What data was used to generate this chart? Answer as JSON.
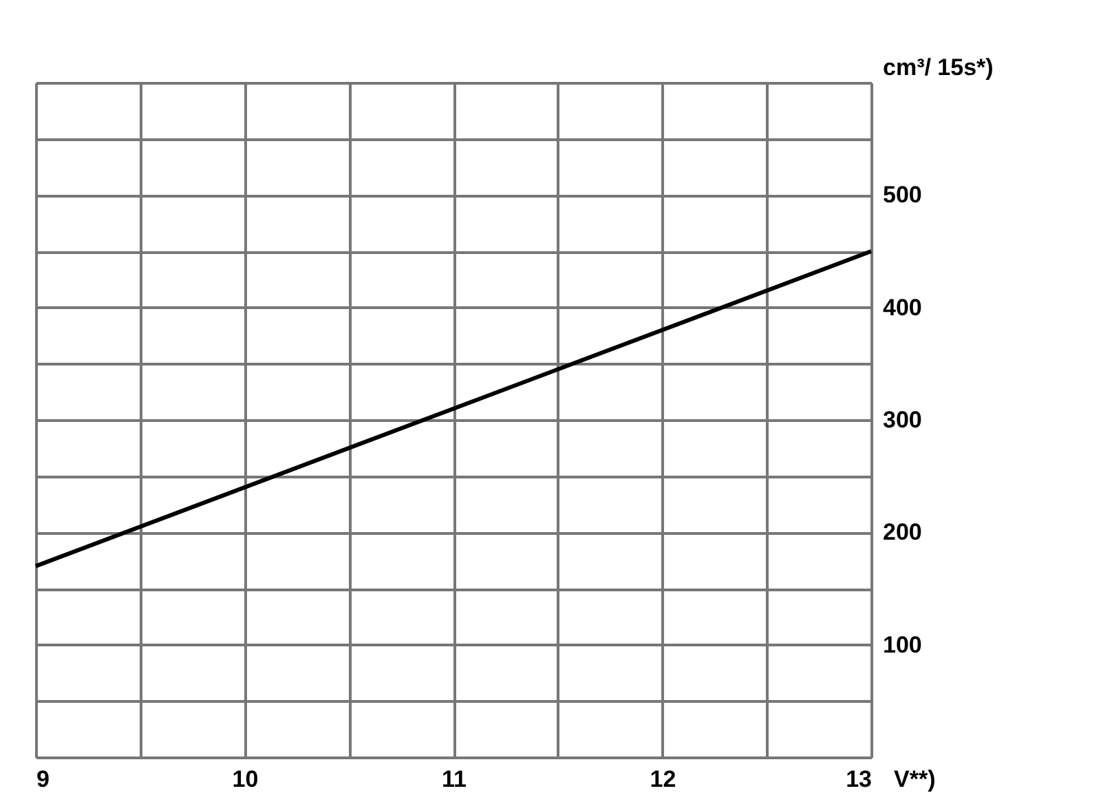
{
  "chart_data": {
    "type": "line",
    "xlabel": "V**)",
    "ylabel": "cm³/ 15s*)",
    "x": [
      9,
      13
    ],
    "series": [
      {
        "color": "#000000",
        "values": [
          170,
          450
        ]
      }
    ],
    "xlim": [
      9,
      13
    ],
    "ylim": [
      0,
      600
    ],
    "xticks": [
      9,
      {
        "value": 9.5,
        "label": null
      },
      10,
      {
        "value": 10.5,
        "label": null
      },
      11,
      {
        "value": 11.5,
        "label": null
      },
      12,
      {
        "value": 12.5,
        "label": null
      },
      13
    ],
    "yticks": [
      {
        "value": 0,
        "label": null
      },
      {
        "value": 50,
        "label": null
      },
      100,
      {
        "value": 150,
        "label": null
      },
      200,
      {
        "value": 250,
        "label": null
      },
      300,
      {
        "value": 350,
        "label": null
      },
      400,
      {
        "value": 450,
        "label": null
      },
      500,
      {
        "value": 550,
        "label": null
      },
      {
        "value": 600,
        "label": null
      }
    ],
    "grid": true,
    "marker": "none",
    "line_style": "solid"
  }
}
